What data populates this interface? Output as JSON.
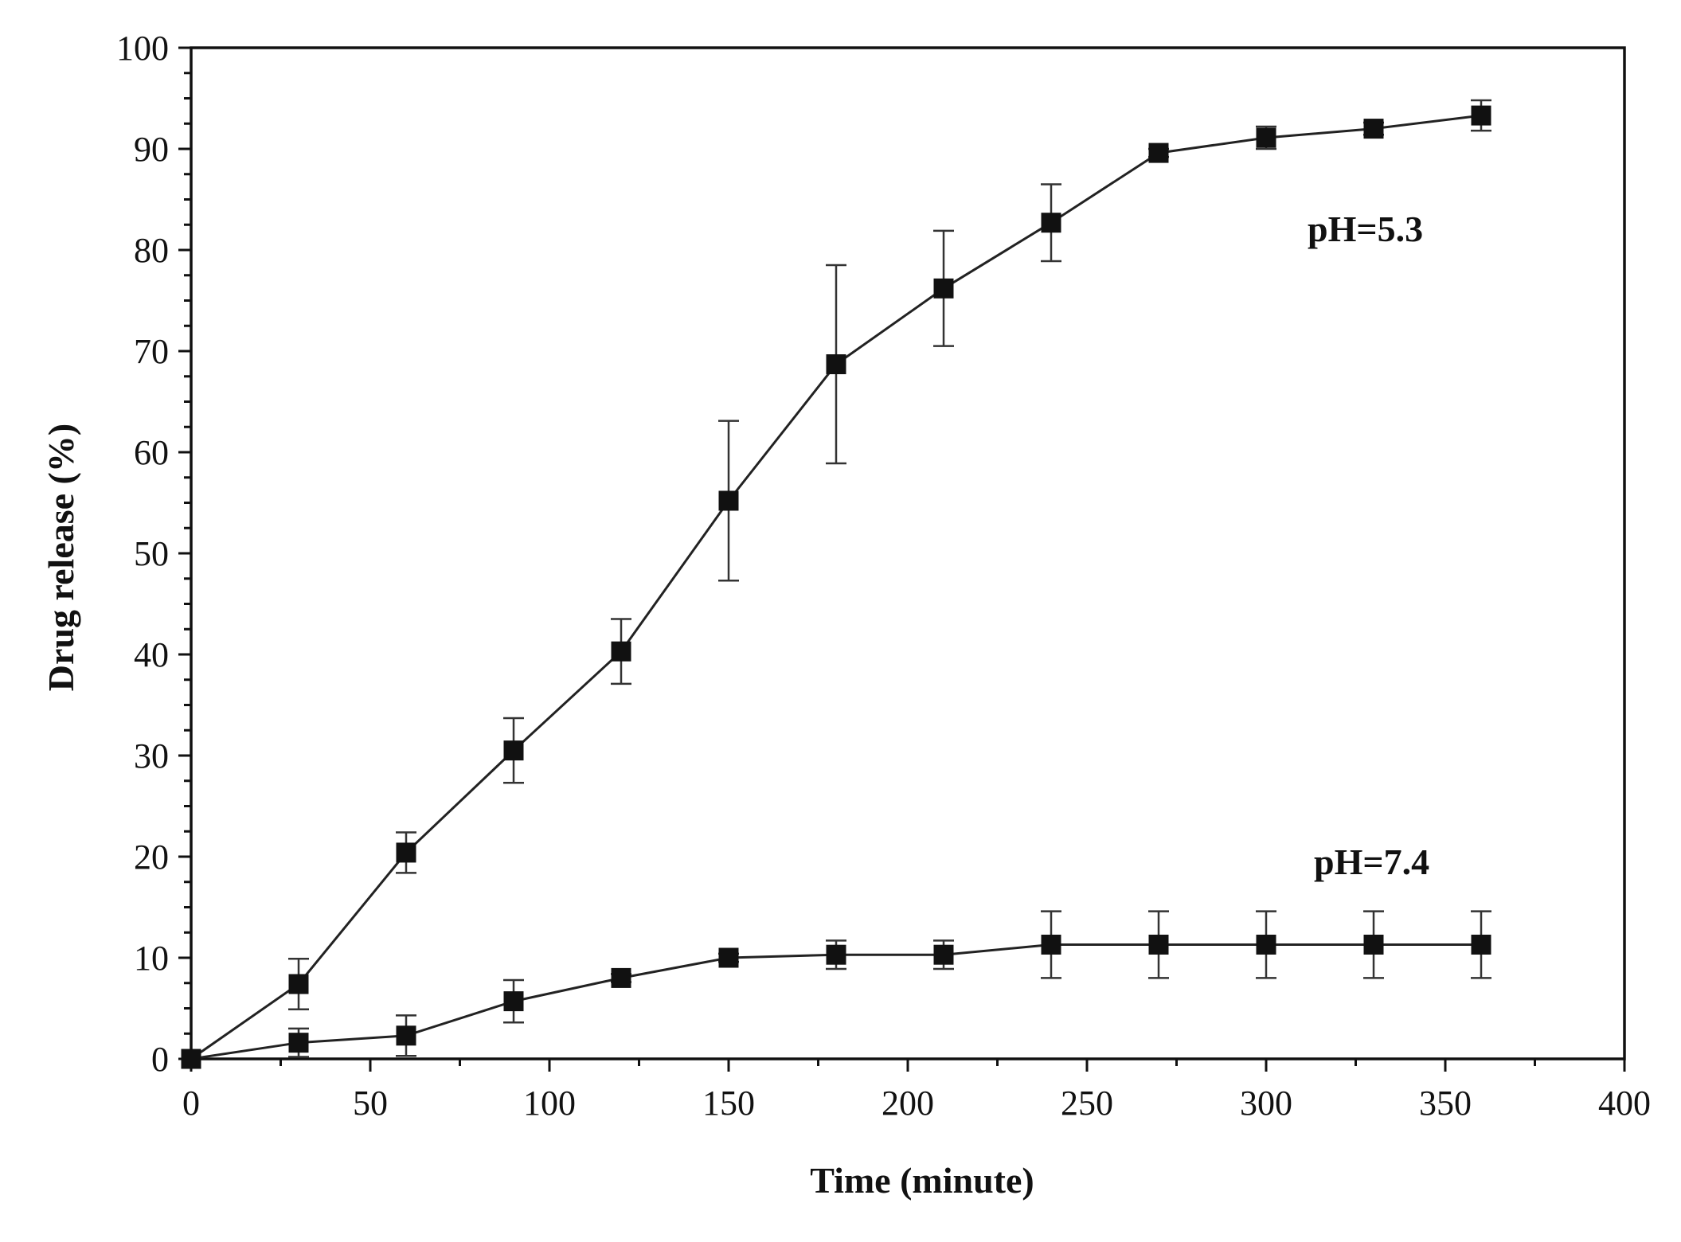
{
  "chart_data": {
    "type": "line",
    "xlabel": "Time (minute)",
    "ylabel": "Drug release (%)",
    "xlim": [
      0,
      400
    ],
    "ylim": [
      0,
      100
    ],
    "xticks": [
      0,
      50,
      100,
      150,
      200,
      250,
      300,
      350,
      400
    ],
    "yticks": [
      0,
      10,
      20,
      30,
      40,
      50,
      60,
      70,
      80,
      90,
      100
    ],
    "grid": false,
    "marker": "square",
    "series": [
      {
        "label": "pH=5.3",
        "x": [
          0,
          30,
          60,
          90,
          120,
          150,
          180,
          210,
          240,
          270,
          300,
          330,
          360
        ],
        "y": [
          0,
          7.4,
          20.4,
          30.5,
          40.3,
          55.2,
          68.7,
          76.2,
          82.7,
          89.6,
          91.1,
          92.0,
          93.3
        ],
        "err": [
          0,
          2.5,
          2.0,
          3.2,
          3.2,
          7.9,
          9.8,
          5.7,
          3.8,
          0.4,
          1.1,
          0.6,
          1.5
        ]
      },
      {
        "label": "pH=7.4",
        "x": [
          0,
          30,
          60,
          90,
          120,
          150,
          180,
          210,
          240,
          270,
          300,
          330,
          360
        ],
        "y": [
          0,
          1.6,
          2.3,
          5.7,
          8.0,
          10.0,
          10.3,
          10.3,
          11.3,
          11.3,
          11.3,
          11.3,
          11.3
        ],
        "err": [
          0,
          1.4,
          2.0,
          2.1,
          0.4,
          0.4,
          1.4,
          1.4,
          3.3,
          3.3,
          3.3,
          3.3,
          3.3
        ]
      }
    ]
  }
}
